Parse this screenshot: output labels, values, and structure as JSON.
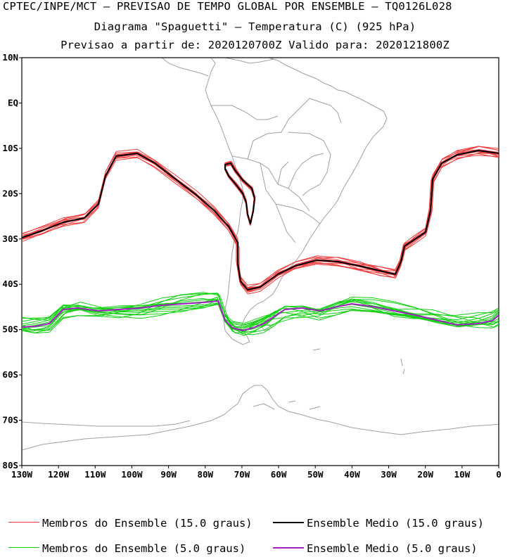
{
  "header": {
    "line1": "CPTEC/INPE/MCT – PREVISAO DE TEMPO GLOBAL POR ENSEMBLE – TQ0126L028",
    "line2": "Diagrama \"Spaguetti\" – Temperatura (C) (925 hPa)",
    "line3": "Previsao a partir de: 2020120700Z  Valido para: 2020121800Z"
  },
  "axes": {
    "lat_labels": [
      "10N",
      "EQ",
      "10S",
      "20S",
      "30S",
      "40S",
      "50S",
      "60S",
      "70S",
      "80S"
    ],
    "lon_labels": [
      "130W",
      "120W",
      "110W",
      "100W",
      "90W",
      "80W",
      "70W",
      "60W",
      "50W",
      "40W",
      "30W",
      "20W",
      "10W",
      "0"
    ]
  },
  "legend": {
    "red_members": "Membros do Ensemble (15.0 graus)",
    "black_mean": "Ensemble Medio (15.0 graus)",
    "green_members": "Membros do Ensemble (5.0 graus)",
    "purple_mean": "Ensemble Medio (5.0 graus)"
  },
  "colors": {
    "members_15": "#f03c3c",
    "mean_15": "#000000",
    "members_5": "#10d010",
    "mean_5": "#a020c0",
    "coastline": "#a0a0a0"
  }
}
